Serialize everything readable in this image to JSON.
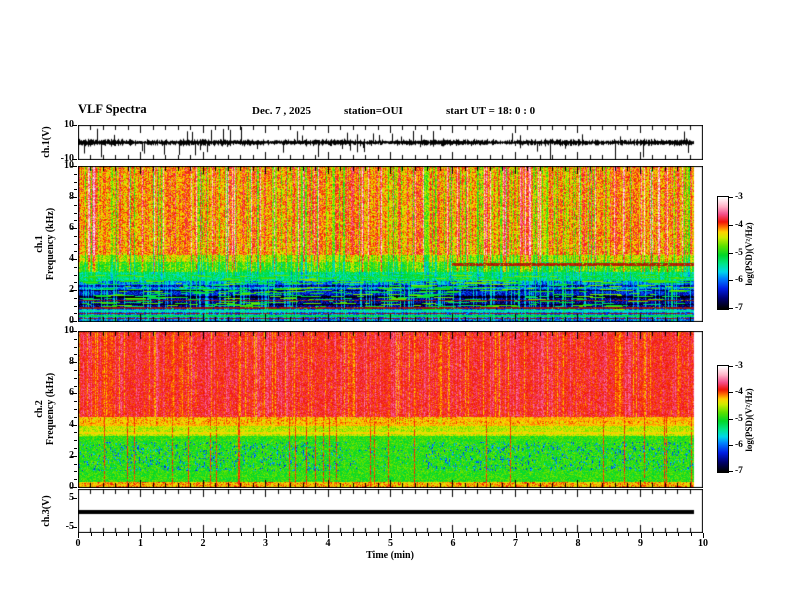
{
  "header": {
    "title": "VLF Spectra",
    "date": "Dec. 7  , 2025",
    "station": "station=OUI",
    "start_ut": "start UT =   18: 0  : 0"
  },
  "axes": {
    "time_label": "Time (min)",
    "time_ticks": [
      "0",
      "1",
      "2",
      "3",
      "4",
      "5",
      "6",
      "7",
      "8",
      "9",
      "10"
    ],
    "freq_ticks": [
      "0",
      "2",
      "4",
      "6",
      "8",
      "10"
    ],
    "wf_ticks": [
      "10",
      "-10"
    ],
    "ch3_ticks": [
      "5",
      "-5"
    ]
  },
  "channels": {
    "ch1_wave_label": "ch.1(V)",
    "ch1_spec_line1": "ch.1",
    "ch1_spec_line2": "Frequency (kHz)",
    "ch2_spec_line1": "ch.2",
    "ch2_spec_line2": "Frequency (kHz)",
    "ch3_label": "ch.3(V)"
  },
  "colorbar": {
    "ticks": [
      "-3",
      "-4",
      "-5",
      "-6",
      "-7"
    ],
    "label": "log(PSD)(V²/Hz)",
    "range": [
      -7,
      -3
    ],
    "gradient_bottom_to_top": [
      {
        "t": 0.0,
        "color": "#000000"
      },
      {
        "t": 0.09,
        "color": "#00006e"
      },
      {
        "t": 0.18,
        "color": "#001ee6"
      },
      {
        "t": 0.27,
        "color": "#0082ff"
      },
      {
        "t": 0.33,
        "color": "#00d7eb"
      },
      {
        "t": 0.4,
        "color": "#00e68c"
      },
      {
        "t": 0.48,
        "color": "#00d728"
      },
      {
        "t": 0.56,
        "color": "#5ae100"
      },
      {
        "t": 0.64,
        "color": "#d2eb00"
      },
      {
        "t": 0.69,
        "color": "#ffd200"
      },
      {
        "t": 0.73,
        "color": "#ff7800"
      },
      {
        "t": 0.78,
        "color": "#f01408"
      },
      {
        "t": 0.85,
        "color": "#f5508c"
      },
      {
        "t": 0.92,
        "color": "#ffb4c8"
      },
      {
        "t": 1.0,
        "color": "#ffffff"
      }
    ]
  },
  "chart_data": [
    {
      "type": "line",
      "panel": "ch.1 time series",
      "ylabel": "ch.1(V)",
      "ylim": [
        -10,
        10
      ],
      "xlim": [
        0,
        10
      ],
      "xlabel": "Time (min)",
      "description": "Continuous broadband black noise trace ~±2 V with frequent impulsive spikes reaching toward ±10 V; record ends near 9.85 min."
    },
    {
      "type": "heatmap",
      "panel": "ch.1 spectrogram",
      "ylabel": "ch.1 Frequency (kHz)",
      "ylim": [
        0,
        10
      ],
      "xlim": [
        0,
        10
      ],
      "colorbar_range": [
        -7,
        -3
      ],
      "colorbar_label": "log(PSD)(V²/Hz)",
      "description": "Above ~4 kHz strong broadband power (yellow/orange/red, ~-4) with dense vertical sferic streaks; 2.5–4 kHz green/cyan (~-4.8 to -5.3); 0.8–2.5 kHz weak blue/navy (~-6.3) with dark horizontal bands; below 0.8 kHz narrow maroon and cyan line bands; persistent narrow dark-red band near 3.7 kHz after ~5.9 min."
    },
    {
      "type": "heatmap",
      "panel": "ch.2 spectrogram",
      "ylabel": "ch.2 Frequency (kHz)",
      "ylim": [
        0,
        10
      ],
      "xlim": [
        0,
        10
      ],
      "colorbar_range": [
        -7,
        -3
      ],
      "colorbar_label": "log(PSD)(V²/Hz)",
      "description": "Above ~4.5 kHz saturated red (~-3.8); 3.3–4.5 kHz yellow-green horizontal bands; 0.3–3.3 kHz green (~-5) with cyan/blue speckles and occasional full-height red streaks; yellow/orange band at the very bottom; narrow yellow band near 4.3 kHz after ~5.9 min."
    },
    {
      "type": "line",
      "panel": "ch.3 time series",
      "ylabel": "ch.3(V)",
      "ylim": [
        -5,
        5
      ],
      "xlim": [
        0,
        10
      ],
      "values": "constant ≈ 0 V (thick flat line), ending near 9.85 min"
    }
  ]
}
